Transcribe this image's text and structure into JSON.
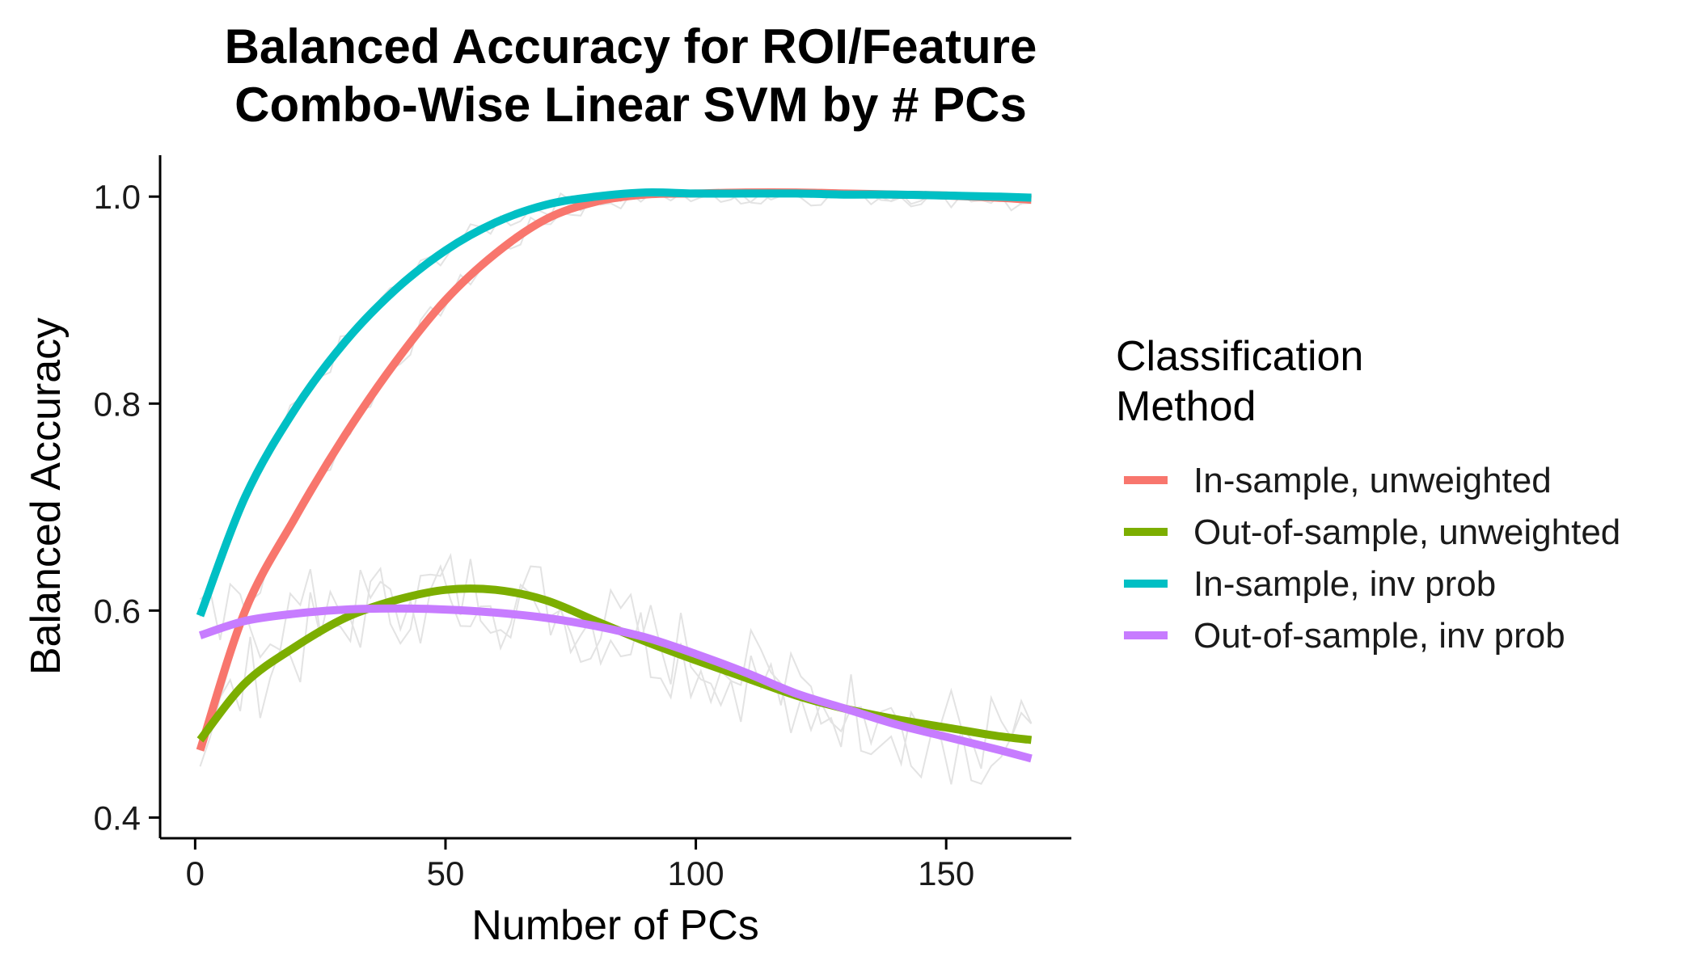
{
  "chart_data": {
    "type": "line",
    "title": [
      "Balanced Accuracy for ROI/Feature",
      "Combo-Wise Linear SVM by # PCs"
    ],
    "xlabel": "Number of PCs",
    "ylabel": "Balanced Accuracy",
    "xlim": [
      -7,
      175
    ],
    "ylim": [
      0.38,
      1.04
    ],
    "xticks": [
      0,
      50,
      100,
      150
    ],
    "yticks": [
      0.4,
      0.6,
      0.8,
      1.0
    ],
    "xtick_labels": [
      "0",
      "50",
      "100",
      "150"
    ],
    "ytick_labels": [
      "0.4",
      "0.6",
      "0.8",
      "1.0"
    ],
    "grid": false,
    "legend": {
      "title": [
        "Classification",
        "Method"
      ],
      "position": "right"
    },
    "x": [
      1,
      10,
      20,
      30,
      40,
      50,
      60,
      70,
      80,
      90,
      100,
      110,
      120,
      130,
      140,
      150,
      160,
      167
    ],
    "series": [
      {
        "name": "In-sample, unweighted",
        "color": "#F8766D",
        "values": [
          0.465,
          0.6,
          0.69,
          0.77,
          0.84,
          0.9,
          0.945,
          0.978,
          0.995,
          1.002,
          1.003,
          1.004,
          1.004,
          1.003,
          1.002,
          1.001,
          0.999,
          0.997
        ]
      },
      {
        "name": "Out-of-sample, unweighted",
        "color": "#7CAE00",
        "values": [
          0.475,
          0.53,
          0.565,
          0.593,
          0.61,
          0.62,
          0.62,
          0.61,
          0.59,
          0.57,
          0.552,
          0.535,
          0.518,
          0.505,
          0.495,
          0.487,
          0.479,
          0.475
        ]
      },
      {
        "name": "In-sample, inv prob",
        "color": "#00BFC4",
        "values": [
          0.595,
          0.71,
          0.795,
          0.86,
          0.91,
          0.948,
          0.975,
          0.992,
          1.0,
          1.004,
          1.003,
          1.003,
          1.003,
          1.002,
          1.002,
          1.001,
          1.0,
          0.999
        ]
      },
      {
        "name": "Out-of-sample, inv prob",
        "color": "#C77CFF",
        "values": [
          0.576,
          0.59,
          0.597,
          0.601,
          0.602,
          0.601,
          0.598,
          0.593,
          0.585,
          0.574,
          0.558,
          0.54,
          0.52,
          0.505,
          0.49,
          0.478,
          0.466,
          0.457
        ]
      }
    ],
    "raw_series_color": "#e3e3e3"
  }
}
